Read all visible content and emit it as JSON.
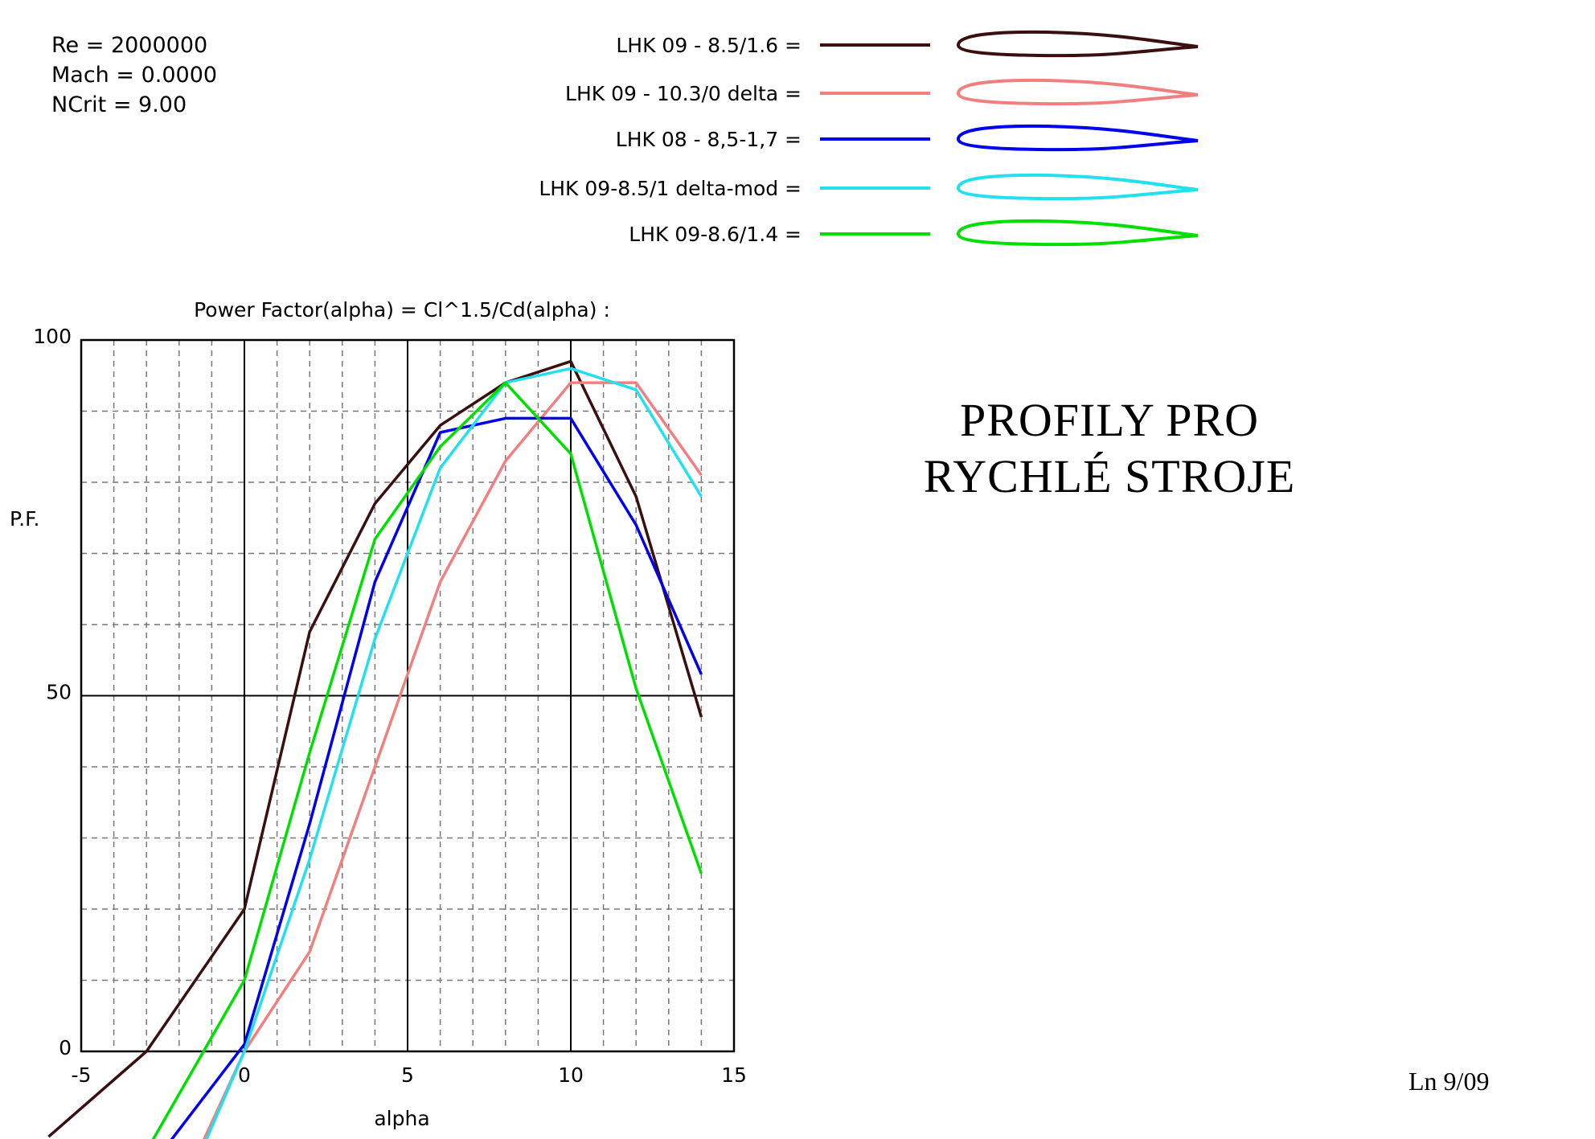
{
  "params": {
    "re": "Re = 2000000",
    "mach": "Mach = 0.0000",
    "ncrit": "NCrit = 9.00"
  },
  "headline": {
    "line1": "PROFILY  PRO",
    "line2": "RYCHLÉ  STROJE"
  },
  "footer_note": "Ln 9/09",
  "chart_data": {
    "type": "line",
    "title": "Power Factor(alpha) = Cl^1.5/Cd(alpha) :",
    "xlabel": "alpha",
    "ylabel": "P.F.",
    "xlim": [
      -5,
      15
    ],
    "ylim": [
      0,
      100
    ],
    "x_ticks": [
      "-5",
      "0",
      "5",
      "10",
      "15"
    ],
    "y_ticks": [
      "0",
      "50",
      "100"
    ],
    "grid": true,
    "legend_position": "top",
    "series": [
      {
        "name": "LHK 09 - 8.5/1.6 =",
        "color": "#3a0f0f",
        "x": [
          -6,
          -3,
          0,
          2,
          4,
          6,
          8,
          10,
          12,
          14
        ],
        "y": [
          -12,
          0,
          20,
          59,
          77,
          88,
          94,
          97,
          78,
          47
        ]
      },
      {
        "name": "LHK  09 - 10.3/0  delta =",
        "color": "#f08080",
        "x": [
          -2,
          0,
          2,
          4,
          6,
          8,
          10,
          12,
          14
        ],
        "y": [
          -20,
          0,
          14,
          40,
          66,
          83,
          94,
          94,
          81
        ]
      },
      {
        "name": "LHK 08 - 8,5-1,7 =",
        "color": "#0000ee",
        "x": [
          -2.5,
          0,
          2,
          4,
          6,
          8,
          10,
          12,
          14
        ],
        "y": [
          -14,
          1,
          32,
          66,
          87,
          89,
          89,
          74,
          53
        ]
      },
      {
        "name": "LHK 09-8.5/1    delta-mod =",
        "color": "#22e0ee",
        "x": [
          -1.5,
          0,
          2,
          4,
          6,
          8,
          10,
          12,
          14
        ],
        "y": [
          -16,
          0,
          27,
          58,
          82,
          94,
          96,
          93,
          78
        ]
      },
      {
        "name": "LHK 09-8.6/1.4 =",
        "color": "#00e000",
        "x": [
          -3,
          0,
          2,
          4,
          6,
          8,
          10,
          12,
          14
        ],
        "y": [
          -14,
          10,
          42,
          72,
          85,
          94,
          84,
          51,
          25
        ]
      }
    ]
  }
}
